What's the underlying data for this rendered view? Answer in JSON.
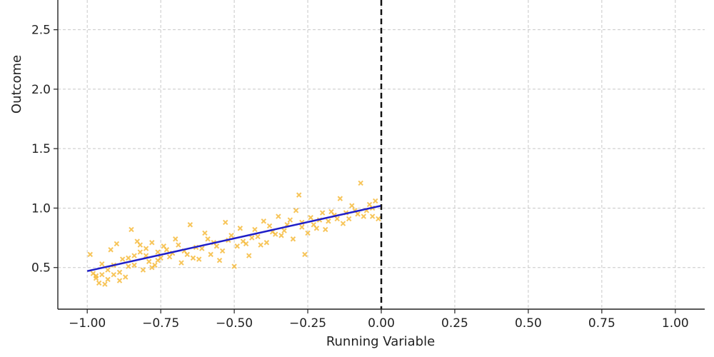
{
  "chart_data": {
    "type": "scatter",
    "title": "",
    "xlabel": "Running Variable",
    "ylabel": "Outcome",
    "xlim": [
      -1.1,
      1.1
    ],
    "ylim": [
      0.15,
      2.75
    ],
    "grid": true,
    "x_ticks": [
      -1.0,
      -0.75,
      -0.5,
      -0.25,
      0.0,
      0.25,
      0.5,
      0.75,
      1.0
    ],
    "x_tick_labels": [
      "−1.00",
      "−0.75",
      "−0.50",
      "−0.25",
      "0.00",
      "0.25",
      "0.50",
      "0.75",
      "1.00"
    ],
    "y_ticks": [
      0.5,
      1.0,
      1.5,
      2.0,
      2.5
    ],
    "y_tick_labels": [
      "0.5",
      "1.0",
      "1.5",
      "2.0",
      "2.5"
    ],
    "cutoff": 0.0,
    "scatter": {
      "color": "#f5b731",
      "marker": "x",
      "points": [
        [
          -0.99,
          0.61
        ],
        [
          -0.98,
          0.45
        ],
        [
          -0.97,
          0.41
        ],
        [
          -0.96,
          0.37
        ],
        [
          -0.95,
          0.53
        ],
        [
          -0.94,
          0.36
        ],
        [
          -0.93,
          0.48
        ],
        [
          -0.92,
          0.65
        ],
        [
          -0.91,
          0.44
        ],
        [
          -0.9,
          0.7
        ],
        [
          -0.89,
          0.39
        ],
        [
          -0.88,
          0.57
        ],
        [
          -0.87,
          0.42
        ],
        [
          -0.86,
          0.51
        ],
        [
          -0.85,
          0.82
        ],
        [
          -0.84,
          0.6
        ],
        [
          -0.83,
          0.72
        ],
        [
          -0.82,
          0.69
        ],
        [
          -0.81,
          0.48
        ],
        [
          -0.8,
          0.66
        ],
        [
          -0.79,
          0.55
        ],
        [
          -0.78,
          0.71
        ],
        [
          -0.77,
          0.52
        ],
        [
          -0.76,
          0.63
        ],
        [
          -0.75,
          0.58
        ],
        [
          -0.74,
          0.68
        ],
        [
          -0.72,
          0.59
        ],
        [
          -0.7,
          0.74
        ],
        [
          -0.68,
          0.54
        ],
        [
          -0.67,
          0.64
        ],
        [
          -0.65,
          0.86
        ],
        [
          -0.63,
          0.67
        ],
        [
          -0.62,
          0.57
        ],
        [
          -0.6,
          0.79
        ],
        [
          -0.58,
          0.61
        ],
        [
          -0.57,
          0.71
        ],
        [
          -0.55,
          0.56
        ],
        [
          -0.53,
          0.88
        ],
        [
          -0.52,
          0.73
        ],
        [
          -0.5,
          0.51
        ],
        [
          -0.49,
          0.68
        ],
        [
          -0.48,
          0.83
        ],
        [
          -0.46,
          0.7
        ],
        [
          -0.45,
          0.6
        ],
        [
          -0.43,
          0.82
        ],
        [
          -0.42,
          0.76
        ],
        [
          -0.4,
          0.89
        ],
        [
          -0.39,
          0.71
        ],
        [
          -0.37,
          0.8
        ],
        [
          -0.35,
          0.93
        ],
        [
          -0.34,
          0.77
        ],
        [
          -0.32,
          0.86
        ],
        [
          -0.3,
          0.74
        ],
        [
          -0.29,
          0.98
        ],
        [
          -0.28,
          1.11
        ],
        [
          -0.27,
          0.88
        ],
        [
          -0.26,
          0.61
        ],
        [
          -0.25,
          0.79
        ],
        [
          -0.24,
          0.92
        ],
        [
          -0.22,
          0.83
        ],
        [
          -0.2,
          0.96
        ],
        [
          -0.18,
          0.89
        ],
        [
          -0.16,
          0.94
        ],
        [
          -0.14,
          1.08
        ],
        [
          -0.13,
          0.87
        ],
        [
          -0.11,
          0.91
        ],
        [
          -0.1,
          1.02
        ],
        [
          -0.08,
          0.95
        ],
        [
          -0.07,
          1.21
        ],
        [
          -0.05,
          0.98
        ],
        [
          -0.04,
          1.03
        ],
        [
          -0.03,
          0.93
        ],
        [
          -0.02,
          1.06
        ],
        [
          -0.01,
          0.91
        ],
        [
          -0.97,
          0.43
        ],
        [
          -0.95,
          0.44
        ],
        [
          -0.93,
          0.4
        ],
        [
          -0.91,
          0.52
        ],
        [
          -0.89,
          0.46
        ],
        [
          -0.86,
          0.58
        ],
        [
          -0.84,
          0.52
        ],
        [
          -0.82,
          0.63
        ],
        [
          -0.8,
          0.6
        ],
        [
          -0.78,
          0.5
        ],
        [
          -0.76,
          0.56
        ],
        [
          -0.73,
          0.65
        ],
        [
          -0.71,
          0.62
        ],
        [
          -0.69,
          0.69
        ],
        [
          -0.66,
          0.61
        ],
        [
          -0.64,
          0.58
        ],
        [
          -0.61,
          0.66
        ],
        [
          -0.59,
          0.74
        ],
        [
          -0.56,
          0.68
        ],
        [
          -0.54,
          0.64
        ],
        [
          -0.51,
          0.77
        ],
        [
          -0.47,
          0.72
        ],
        [
          -0.44,
          0.75
        ],
        [
          -0.41,
          0.69
        ],
        [
          -0.38,
          0.85
        ],
        [
          -0.36,
          0.78
        ],
        [
          -0.33,
          0.81
        ],
        [
          -0.31,
          0.9
        ],
        [
          -0.27,
          0.84
        ],
        [
          -0.23,
          0.86
        ],
        [
          -0.21,
          0.9
        ],
        [
          -0.19,
          0.82
        ],
        [
          -0.17,
          0.97
        ],
        [
          -0.15,
          0.91
        ],
        [
          -0.12,
          0.96
        ],
        [
          -0.09,
          0.98
        ],
        [
          -0.06,
          0.93
        ],
        [
          -0.03,
          1.0
        ]
      ]
    },
    "fit_line": {
      "color": "#1f1fc8",
      "points": [
        [
          -1.0,
          0.47
        ],
        [
          0.0,
          1.02
        ]
      ]
    },
    "cutoff_line": {
      "color": "#111111",
      "style": "dashed"
    }
  }
}
